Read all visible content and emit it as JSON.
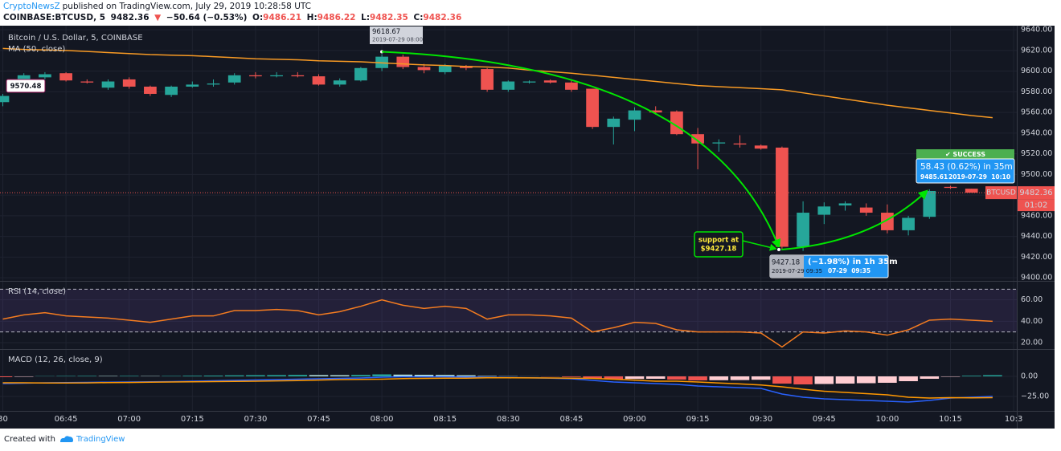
{
  "header": {
    "author": "CryptoNewsZ",
    "published": "published on TradingView.com, July 29, 2019 10:28:58 UTC",
    "symbol": "COINBASE:BTCUSD, 5",
    "price": "9482.36",
    "change_arrow": "▼",
    "change": "−50.64 (−0.53%)",
    "open_label": "O:",
    "open": "9486.21",
    "high_label": "H:",
    "high": "9486.22",
    "low_label": "L:",
    "low": "9482.35",
    "close_label": "C:",
    "close": "9482.36"
  },
  "chart_data": [
    {
      "type": "candlestick",
      "title": "Bitcoin / U.S. Dollar, 5, COINBASE",
      "categories": [
        "30",
        null,
        null,
        "06:45",
        null,
        null,
        "07:00",
        null,
        null,
        "07:15",
        null,
        null,
        "07:30",
        null,
        null,
        "07:45",
        null,
        null,
        "08:00",
        null,
        null,
        "08:15",
        null,
        null,
        "08:30",
        null,
        null,
        "08:45",
        null,
        null,
        "09:00",
        null,
        null,
        "09:15",
        null,
        null,
        "09:30",
        null,
        null,
        "09:45",
        null,
        null,
        "10:00",
        null,
        null,
        "10:15",
        null,
        null,
        "10:3"
      ],
      "open": [
        9570,
        9590,
        9594,
        9598,
        9590,
        9584,
        9592,
        9585,
        9577,
        9585,
        9587,
        9589,
        9596,
        9595,
        9596,
        9595,
        9587,
        9591,
        9603,
        9614,
        9604,
        9599,
        9605,
        9602,
        9582,
        9589,
        9591,
        9589,
        9583,
        9546,
        9553,
        9562,
        9561,
        9539,
        9530,
        9530,
        9528,
        9526,
        9430,
        9461,
        9470,
        9468,
        9463,
        9446,
        9459,
        9488,
        9486.21,
        null,
        null
      ],
      "high": [
        9578,
        9598,
        9599,
        9599,
        9592,
        9592,
        9594,
        9586,
        9586,
        9590,
        9592,
        9598,
        9599,
        9599,
        9599,
        9597,
        9593,
        9604,
        9618.67,
        9616,
        9607,
        9607,
        9606,
        9603,
        9591,
        9591,
        9592,
        9591,
        9583,
        9556,
        9565,
        9566,
        9562,
        9545,
        9534,
        9538,
        9529,
        9527,
        9474,
        9473,
        9474,
        9472,
        9471,
        9460,
        9485.61,
        9489,
        9486.22,
        null,
        null
      ],
      "low": [
        9566,
        9588,
        9592,
        9590,
        9588,
        9582,
        9583,
        9576,
        9575,
        9584,
        9585,
        9587,
        9593,
        9594,
        9594,
        9586,
        9585,
        9590,
        9600,
        9602,
        9598,
        9597,
        9601,
        9580,
        9580,
        9588,
        9588,
        9580,
        9544,
        9529,
        9542,
        9558,
        9538,
        9505,
        9522,
        9526,
        9524,
        9427.18,
        9426,
        9452,
        9465,
        9460,
        9443,
        9441,
        9457,
        9486,
        9482.35,
        null,
        null
      ],
      "close": [
        9576,
        9596,
        9597,
        9591,
        9589,
        9590,
        9585,
        9578,
        9585,
        9587,
        9588,
        9596,
        9595,
        9596,
        9595,
        9587,
        9591,
        9603,
        9614,
        9604,
        9601,
        9605,
        9603,
        9582,
        9590,
        9590,
        9589,
        9582,
        9546,
        9554,
        9562,
        9560,
        9539,
        9530,
        9531,
        9529,
        9525,
        9430,
        9463,
        9469,
        9472,
        9463,
        9446,
        9458,
        9484,
        9487,
        9482.36,
        null,
        null
      ],
      "up_color": "#26a69a",
      "down_color": "#ef5350",
      "series": [
        {
          "name": "MA (50, close)",
          "color": "#f89a24",
          "values": [
            9622,
            9621,
            9620.5,
            9620,
            9619,
            9618,
            9617,
            9616,
            9615.5,
            9615,
            9614,
            9613,
            9612,
            9611.5,
            9611,
            9610,
            9609.5,
            9609,
            9608,
            9607,
            9606,
            9605.5,
            9604.5,
            9604,
            9603,
            9601,
            9599.5,
            9598,
            9596,
            9594,
            9592,
            9590,
            9588,
            9586,
            9585,
            9584,
            9583,
            9582,
            9579,
            9576,
            9573,
            9570,
            9567,
            9564.5,
            9562,
            9559.5,
            9557,
            9555,
            null
          ]
        }
      ],
      "ylim": [
        9397,
        9644
      ],
      "yticks": [
        {
          "value": 9400,
          "label": "9400.00"
        },
        {
          "value": 9420,
          "label": "9420.00"
        },
        {
          "value": 9440,
          "label": "9440.00"
        },
        {
          "value": 9460,
          "label": "9460.00"
        },
        {
          "value": 9480,
          "label": "9480.00"
        },
        {
          "value": 9500,
          "label": "9500.00"
        },
        {
          "value": 9520,
          "label": "9520.00"
        },
        {
          "value": 9540,
          "label": "9540.00"
        },
        {
          "value": 9560,
          "label": "9560.00"
        },
        {
          "value": 9580,
          "label": "9580.00"
        },
        {
          "value": 9600,
          "label": "9600.00"
        },
        {
          "value": 9620,
          "label": "9620.00"
        },
        {
          "value": 9640,
          "label": "9640.00"
        }
      ],
      "grid": true,
      "last_price": {
        "value": 9482.36,
        "label": "9482.36"
      },
      "last_color": "#ef5350",
      "symbol": "BTCUSD",
      "countdown": "01:02",
      "annotations": {
        "left_price": "9570.48",
        "high_price": "9618.67",
        "high_time": "2019-07-29 08:00",
        "support_1": "support at",
        "support_2": "$9427.18",
        "drop_price": "9427.18",
        "drop_change": "(−1.98%) in 1h 35m",
        "drop_time": "2019-07-29 09:35",
        "drop_time_short": "07-29  09:35",
        "success": "✔ SUCCESS",
        "rise_change": "58.43 (0.62%) in 35m",
        "rise_price": "9485.61",
        "rise_time": "2019-07-29  10:10"
      }
    },
    {
      "type": "line",
      "series": [
        {
          "name": "RSI (14, close)",
          "color": "#f57c20",
          "values": [
            42,
            46,
            48,
            45,
            44,
            43,
            41,
            39,
            42,
            45,
            45,
            50,
            50,
            51,
            50,
            46,
            49,
            54,
            60,
            55,
            52,
            54,
            52,
            42,
            46,
            46,
            45,
            43,
            30,
            34,
            39,
            38,
            32,
            30,
            30,
            30,
            29,
            16,
            30,
            29,
            31,
            30,
            27,
            32,
            41,
            42,
            41,
            40,
            null
          ]
        }
      ],
      "bands": [
        30,
        70
      ],
      "band_color": "#7e57c2",
      "ylim": [
        14,
        77
      ],
      "yticks": [
        {
          "value": 20,
          "label": "20.00"
        },
        {
          "value": 40,
          "label": "40.00"
        },
        {
          "value": 60,
          "label": "60.00"
        }
      ],
      "grid": true
    },
    {
      "type": "macd",
      "title": "MACD (12, 26, close, 9)",
      "histogram": [
        -1,
        -0.5,
        0.3,
        0.5,
        0.6,
        0.5,
        0.6,
        0.4,
        0.5,
        0.8,
        1,
        1.3,
        1.5,
        1.6,
        1.8,
        1.6,
        1.5,
        1.8,
        2.5,
        2.2,
        2,
        1.8,
        1.4,
        0.6,
        0.3,
        0.1,
        -0.2,
        -0.8,
        -2.5,
        -3.5,
        -3.2,
        -3,
        -4,
        -5,
        -4.8,
        -4.6,
        -4.2,
        -9,
        -10,
        -9.5,
        -9,
        -8.5,
        -8,
        -6,
        -3,
        -0.5,
        0.8,
        1.5,
        null
      ],
      "histogram_colors": [
        "#26a69a",
        "#b2dfdb",
        "#ef5350",
        "#ffcdd2"
      ],
      "series": [
        {
          "color": "#2962ff",
          "values": [
            -9,
            -8.5,
            -8,
            -7.8,
            -7.5,
            -7.2,
            -7,
            -6.8,
            -6.5,
            -6,
            -5.5,
            -5,
            -4.5,
            -4,
            -3.5,
            -3,
            -2.5,
            -2,
            -1,
            -0.5,
            -0.5,
            -0.5,
            -0.8,
            -1.2,
            -1.5,
            -1.8,
            -2.2,
            -3,
            -5,
            -7,
            -8,
            -9,
            -10,
            -12,
            -13,
            -14,
            -15,
            -22,
            -26,
            -28,
            -29,
            -30,
            -31,
            -32,
            -30,
            -27,
            -26,
            -25,
            null
          ]
        },
        {
          "color": "#ff9800",
          "values": [
            -8,
            -8,
            -8.3,
            -8.3,
            -8.1,
            -7.7,
            -7.6,
            -7.2,
            -7,
            -6.8,
            -6.5,
            -6.3,
            -6,
            -5.6,
            -5.3,
            -4.6,
            -4,
            -3.8,
            -3.5,
            -2.7,
            -2.5,
            -2.3,
            -2.2,
            -1.8,
            -1.8,
            -1.9,
            -2,
            -2.2,
            -2.5,
            -3.5,
            -4.8,
            -6,
            -6,
            -7,
            -8.2,
            -9.4,
            -10.8,
            -13,
            -16,
            -18.5,
            -20,
            -21.5,
            -23,
            -26,
            -27,
            -26.5,
            -26.8,
            -26.5,
            null
          ]
        }
      ],
      "ylim": [
        -43,
        33
      ],
      "yticks": [
        {
          "value": -25,
          "label": "−25.00"
        },
        {
          "value": 0,
          "label": "0.00"
        }
      ],
      "grid": true
    }
  ],
  "footer": {
    "created": "Created with",
    "brand": "TradingView"
  }
}
